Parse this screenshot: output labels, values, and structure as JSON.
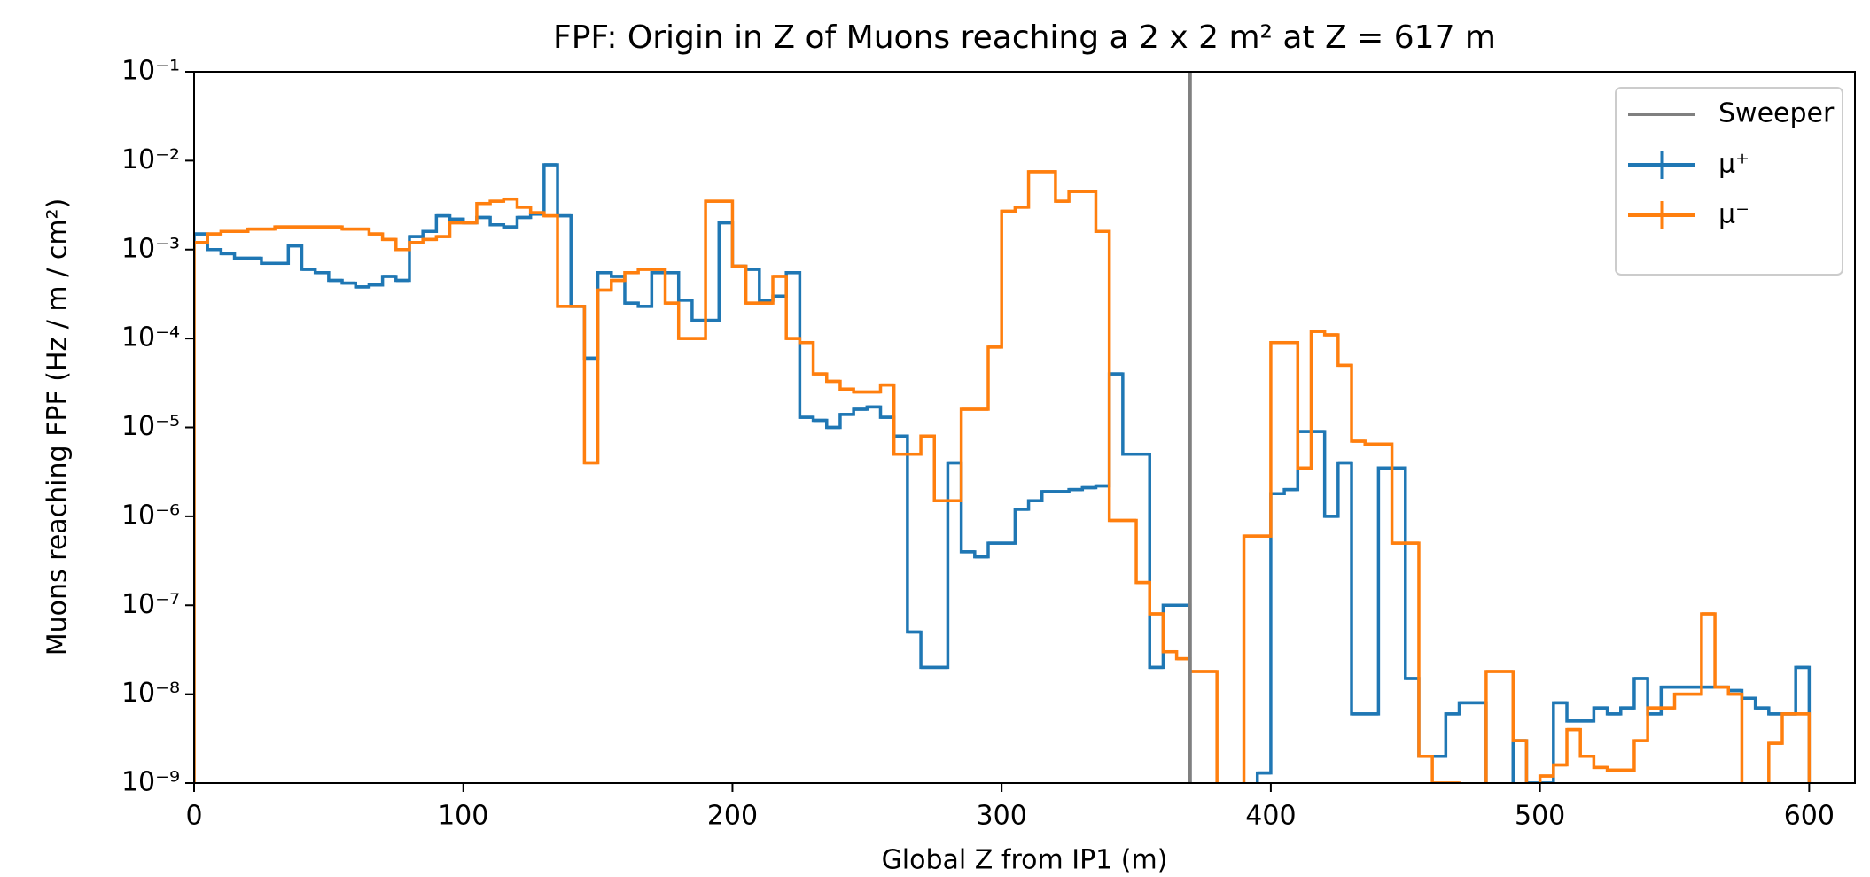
{
  "chart_data": {
    "type": "histogram",
    "title": "FPF: Origin in Z of Muons reaching a 2 x 2 m² at Z = 617 m",
    "x_label": "Global Z from IP1 (m)",
    "y_label": "Muons reaching FPF  (Hz / m / cm²)",
    "xlim": [
      0,
      617
    ],
    "ylim": [
      1e-09,
      0.1
    ],
    "log_y": true,
    "xticks": [
      0,
      100,
      200,
      300,
      400,
      500,
      600
    ],
    "yticks": [
      {
        "value": 1e-09,
        "label": "10⁻⁹"
      },
      {
        "value": 1e-08,
        "label": "10⁻⁸"
      },
      {
        "value": 1e-07,
        "label": "10⁻⁷"
      },
      {
        "value": 1e-06,
        "label": "10⁻⁶"
      },
      {
        "value": 1e-05,
        "label": "10⁻⁵"
      },
      {
        "value": 0.0001,
        "label": "10⁻⁴"
      },
      {
        "value": 0.001,
        "label": "10⁻³"
      },
      {
        "value": 0.01,
        "label": "10⁻²"
      },
      {
        "value": 0.1,
        "label": "10⁻¹"
      }
    ],
    "legend": "upper right",
    "vlines": [
      {
        "name": "Sweeper",
        "x": 370,
        "color": "#808080"
      }
    ],
    "bins": [
      0,
      5,
      10,
      15,
      20,
      25,
      30,
      35,
      40,
      45,
      50,
      55,
      60,
      65,
      70,
      75,
      80,
      85,
      90,
      95,
      100,
      105,
      110,
      115,
      120,
      125,
      130,
      135,
      140,
      145,
      150,
      155,
      160,
      165,
      170,
      175,
      180,
      185,
      190,
      195,
      200,
      205,
      210,
      215,
      220,
      225,
      230,
      235,
      240,
      245,
      250,
      255,
      260,
      265,
      270,
      275,
      280,
      285,
      290,
      295,
      300,
      305,
      310,
      315,
      320,
      325,
      330,
      335,
      340,
      345,
      350,
      355,
      360,
      365,
      370,
      375,
      380,
      385,
      390,
      395,
      400,
      405,
      410,
      415,
      420,
      425,
      430,
      435,
      440,
      445,
      450,
      455,
      460,
      465,
      470,
      475,
      480,
      485,
      490,
      495,
      500,
      505,
      510,
      515,
      520,
      525,
      530,
      535,
      540,
      545,
      550,
      555,
      560,
      565,
      570,
      575,
      580,
      585,
      590,
      595,
      600
    ],
    "series": [
      {
        "name": "μ⁺",
        "color": "#1f77b4",
        "values": [
          0.0015,
          0.001,
          0.0009,
          0.0008,
          0.0008,
          0.0007,
          0.0007,
          0.0011,
          0.0006,
          0.00055,
          0.00045,
          0.00042,
          0.00038,
          0.0004,
          0.0005,
          0.00045,
          0.0014,
          0.0016,
          0.0024,
          0.0022,
          0.002,
          0.0023,
          0.0019,
          0.0018,
          0.0023,
          0.0025,
          0.009,
          0.0024,
          0.00023,
          6e-05,
          0.00055,
          0.0005,
          0.00025,
          0.00023,
          0.00055,
          0.00055,
          0.00027,
          0.00016,
          0.00016,
          0.002,
          0.00065,
          0.0006,
          0.00027,
          0.0003,
          0.00055,
          1.3e-05,
          1.2e-05,
          1e-05,
          1.4e-05,
          1.6e-05,
          1.7e-05,
          1.3e-05,
          8e-06,
          5e-08,
          2e-08,
          2e-08,
          4e-06,
          4e-07,
          3.5e-07,
          5e-07,
          5e-07,
          1.2e-06,
          1.5e-06,
          1.9e-06,
          1.9e-06,
          2e-06,
          2.1e-06,
          2.2e-06,
          4e-05,
          5e-06,
          5e-06,
          2e-08,
          1e-07,
          1e-07,
          0,
          0,
          0,
          0,
          0,
          1.3e-09,
          1.8e-06,
          2e-06,
          9e-06,
          9e-06,
          1e-06,
          4e-06,
          6e-09,
          6e-09,
          3.5e-06,
          3.5e-06,
          1.5e-08,
          2e-09,
          2e-09,
          6e-09,
          8e-09,
          8e-09,
          0,
          0,
          3e-09,
          1e-09,
          1e-09,
          8e-09,
          5e-09,
          5e-09,
          7e-09,
          6e-09,
          7e-09,
          1.5e-08,
          6e-09,
          1.2e-08,
          1.2e-08,
          1.2e-08,
          1.2e-08,
          1.2e-08,
          1.1e-08,
          9e-09,
          7e-09,
          6e-09,
          6e-09,
          2e-08
        ]
      },
      {
        "name": "μ⁻",
        "color": "#ff7f0e",
        "values": [
          0.0012,
          0.0015,
          0.0016,
          0.0016,
          0.0017,
          0.0017,
          0.0018,
          0.0018,
          0.0018,
          0.0018,
          0.0018,
          0.0017,
          0.0017,
          0.0015,
          0.0013,
          0.001,
          0.0012,
          0.0013,
          0.0014,
          0.002,
          0.002,
          0.0033,
          0.0035,
          0.0037,
          0.003,
          0.0026,
          0.0024,
          0.00023,
          0.00023,
          4e-06,
          0.00035,
          0.00045,
          0.00055,
          0.0006,
          0.0006,
          0.00025,
          0.0001,
          0.0001,
          0.0035,
          0.0035,
          0.00065,
          0.00025,
          0.00025,
          0.0005,
          0.0001,
          9e-05,
          4e-05,
          3.3e-05,
          2.7e-05,
          2.5e-05,
          2.5e-05,
          3e-05,
          5e-06,
          5e-06,
          8e-06,
          1.5e-06,
          1.5e-06,
          1.6e-05,
          1.6e-05,
          8e-05,
          0.0027,
          0.003,
          0.0075,
          0.0075,
          0.0035,
          0.0045,
          0.0045,
          0.0016,
          9e-07,
          9e-07,
          1.8e-07,
          8e-08,
          3e-08,
          2.5e-08,
          1.8e-08,
          1.8e-08,
          0,
          0,
          6e-07,
          6e-07,
          9e-05,
          9e-05,
          3.5e-06,
          0.00012,
          0.00011,
          5e-05,
          7e-06,
          6.5e-06,
          6.5e-06,
          5e-07,
          5e-07,
          2e-09,
          1e-09,
          1e-09,
          0,
          0,
          1.8e-08,
          1.8e-08,
          3e-09,
          0,
          1.2e-09,
          1.6e-09,
          4e-09,
          2e-09,
          1.5e-09,
          1.4e-09,
          1.4e-09,
          3e-09,
          7e-09,
          7e-09,
          1e-08,
          1e-08,
          8e-08,
          1.2e-08,
          1e-08,
          0,
          0,
          2.8e-09,
          6e-09,
          6e-09
        ]
      }
    ]
  }
}
